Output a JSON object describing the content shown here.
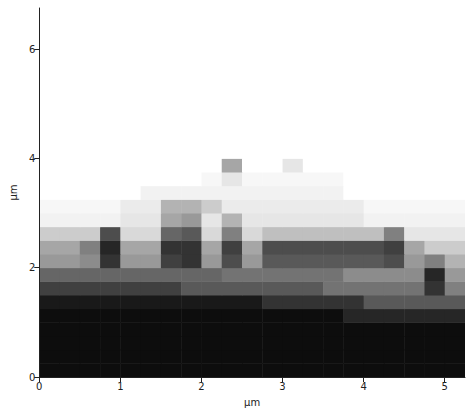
{
  "chart_data": {
    "type": "heatmap",
    "x_label": "μm",
    "y_label": "μm",
    "x": [
      0.125,
      0.375,
      0.625,
      0.875,
      1.125,
      1.375,
      1.625,
      1.875,
      2.125,
      2.375,
      2.625,
      2.875,
      3.125,
      3.375,
      3.625,
      3.875,
      4.125,
      4.375,
      4.625,
      4.875,
      5.125
    ],
    "y": [
      0.125,
      0.375,
      0.625,
      0.875,
      1.125,
      1.375,
      1.625,
      1.875,
      2.125,
      2.375,
      2.625,
      2.875,
      3.125,
      3.375,
      3.625,
      3.875,
      4.125,
      4.375,
      4.625,
      4.875,
      5.125,
      5.375,
      5.625,
      5.875,
      6.125,
      6.375,
      6.625
    ],
    "z": [
      [
        0.95,
        0.95,
        0.95,
        0.95,
        0.95,
        0.95,
        0.95,
        0.95,
        0.95,
        0.95,
        0.95,
        0.95,
        0.95,
        0.95,
        0.95,
        0.95,
        0.95,
        0.95,
        0.95,
        0.95,
        0.95
      ],
      [
        0.95,
        0.95,
        0.95,
        0.95,
        0.95,
        0.95,
        0.95,
        0.95,
        0.95,
        0.95,
        0.95,
        0.95,
        0.95,
        0.95,
        0.95,
        0.95,
        0.95,
        0.95,
        0.95,
        0.95,
        0.95
      ],
      [
        0.95,
        0.95,
        0.95,
        0.95,
        0.95,
        0.95,
        0.95,
        0.95,
        0.95,
        0.95,
        0.95,
        0.95,
        0.95,
        0.95,
        0.95,
        0.95,
        0.95,
        0.95,
        0.95,
        0.95,
        0.95
      ],
      [
        0.95,
        0.95,
        0.95,
        0.95,
        0.95,
        0.95,
        0.95,
        0.95,
        0.95,
        0.95,
        0.95,
        0.95,
        0.95,
        0.95,
        0.95,
        0.95,
        0.95,
        0.95,
        0.95,
        0.95,
        0.95
      ],
      [
        0.95,
        0.95,
        0.95,
        0.95,
        0.95,
        0.95,
        0.95,
        0.95,
        0.95,
        0.95,
        0.95,
        0.95,
        0.95,
        0.95,
        0.95,
        0.85,
        0.85,
        0.85,
        0.85,
        0.85,
        0.85
      ],
      [
        0.9,
        0.9,
        0.9,
        0.9,
        0.9,
        0.9,
        0.9,
        0.9,
        0.9,
        0.9,
        0.9,
        0.8,
        0.8,
        0.8,
        0.8,
        0.8,
        0.65,
        0.65,
        0.65,
        0.65,
        0.65
      ],
      [
        0.75,
        0.75,
        0.75,
        0.75,
        0.75,
        0.75,
        0.75,
        0.65,
        0.65,
        0.65,
        0.65,
        0.65,
        0.65,
        0.65,
        0.55,
        0.55,
        0.55,
        0.55,
        0.55,
        0.8,
        0.5
      ],
      [
        0.6,
        0.6,
        0.6,
        0.6,
        0.6,
        0.6,
        0.6,
        0.6,
        0.6,
        0.55,
        0.55,
        0.55,
        0.55,
        0.55,
        0.55,
        0.45,
        0.45,
        0.45,
        0.45,
        0.85,
        0.4
      ],
      [
        0.4,
        0.4,
        0.45,
        0.8,
        0.4,
        0.4,
        0.75,
        0.8,
        0.4,
        0.7,
        0.4,
        0.65,
        0.65,
        0.65,
        0.65,
        0.65,
        0.65,
        0.7,
        0.4,
        0.5,
        0.3
      ],
      [
        0.35,
        0.35,
        0.5,
        0.85,
        0.35,
        0.35,
        0.8,
        0.8,
        0.35,
        0.75,
        0.35,
        0.7,
        0.7,
        0.7,
        0.7,
        0.7,
        0.7,
        0.75,
        0.35,
        0.2,
        0.2
      ],
      [
        0.2,
        0.2,
        0.2,
        0.7,
        0.15,
        0.15,
        0.6,
        0.65,
        0.15,
        0.5,
        0.15,
        0.25,
        0.25,
        0.25,
        0.25,
        0.25,
        0.25,
        0.5,
        0.1,
        0.1,
        0.1
      ],
      [
        0.05,
        0.05,
        0.05,
        0.05,
        0.1,
        0.1,
        0.35,
        0.4,
        0.1,
        0.3,
        0.1,
        0.1,
        0.1,
        0.1,
        0.1,
        0.1,
        0.05,
        0.05,
        0.05,
        0.05,
        0.05
      ],
      [
        0.03,
        0.03,
        0.03,
        0.03,
        0.08,
        0.08,
        0.3,
        0.3,
        0.2,
        0.08,
        0.08,
        0.08,
        0.08,
        0.08,
        0.08,
        0.08,
        0.03,
        0.03,
        0.03,
        0.03,
        0.03
      ],
      [
        0,
        0,
        0,
        0,
        0,
        0.05,
        0.05,
        0.05,
        0.05,
        0.05,
        0.05,
        0.05,
        0.05,
        0.05,
        0.05,
        0,
        0,
        0,
        0,
        0,
        0
      ],
      [
        0,
        0,
        0,
        0,
        0,
        0,
        0,
        0,
        0.03,
        0.1,
        0.03,
        0.03,
        0.03,
        0.03,
        0.03,
        0,
        0,
        0,
        0,
        0,
        0
      ],
      [
        0,
        0,
        0,
        0,
        0,
        0,
        0,
        0,
        0,
        0.35,
        0,
        0,
        0.1,
        0,
        0,
        0,
        0,
        0,
        0,
        0,
        0
      ],
      [
        0,
        0,
        0,
        0,
        0,
        0,
        0,
        0,
        0,
        0,
        0,
        0,
        0,
        0,
        0,
        0,
        0,
        0,
        0,
        0,
        0
      ],
      [
        0,
        0,
        0,
        0,
        0,
        0,
        0,
        0,
        0,
        0,
        0,
        0,
        0,
        0,
        0,
        0,
        0,
        0,
        0,
        0,
        0
      ],
      [
        0,
        0,
        0,
        0,
        0,
        0,
        0,
        0,
        0,
        0,
        0,
        0,
        0,
        0,
        0,
        0,
        0,
        0,
        0,
        0,
        0
      ],
      [
        0,
        0,
        0,
        0,
        0,
        0,
        0,
        0,
        0,
        0,
        0,
        0,
        0,
        0,
        0,
        0,
        0,
        0,
        0,
        0,
        0
      ],
      [
        0,
        0,
        0,
        0,
        0,
        0,
        0,
        0,
        0,
        0,
        0,
        0,
        0,
        0,
        0,
        0,
        0,
        0,
        0,
        0,
        0
      ],
      [
        0,
        0,
        0,
        0,
        0,
        0,
        0,
        0,
        0,
        0,
        0,
        0,
        0,
        0,
        0,
        0,
        0,
        0,
        0,
        0,
        0
      ],
      [
        0,
        0,
        0,
        0,
        0,
        0,
        0,
        0,
        0,
        0,
        0,
        0,
        0,
        0,
        0,
        0,
        0,
        0,
        0,
        0,
        0
      ],
      [
        0,
        0,
        0,
        0,
        0,
        0,
        0,
        0,
        0,
        0,
        0,
        0,
        0,
        0,
        0,
        0,
        0,
        0,
        0,
        0,
        0
      ],
      [
        0,
        0,
        0,
        0,
        0,
        0,
        0,
        0,
        0,
        0,
        0,
        0,
        0,
        0,
        0,
        0,
        0,
        0,
        0,
        0,
        0
      ],
      [
        0,
        0,
        0,
        0,
        0,
        0,
        0,
        0,
        0,
        0,
        0,
        0,
        0,
        0,
        0,
        0,
        0,
        0,
        0,
        0,
        0
      ],
      [
        0,
        0,
        0,
        0,
        0,
        0,
        0,
        0,
        0,
        0,
        0,
        0,
        0,
        0,
        0,
        0,
        0,
        0,
        0,
        0,
        0
      ]
    ],
    "color_range": [
      0,
      1
    ],
    "xlim": [
      0,
      5.25
    ],
    "xticks": [
      0,
      1,
      2,
      3,
      4,
      5
    ],
    "ylim": [
      0,
      6.75
    ],
    "yticks": [
      0,
      2,
      4,
      6
    ],
    "grid": false
  }
}
